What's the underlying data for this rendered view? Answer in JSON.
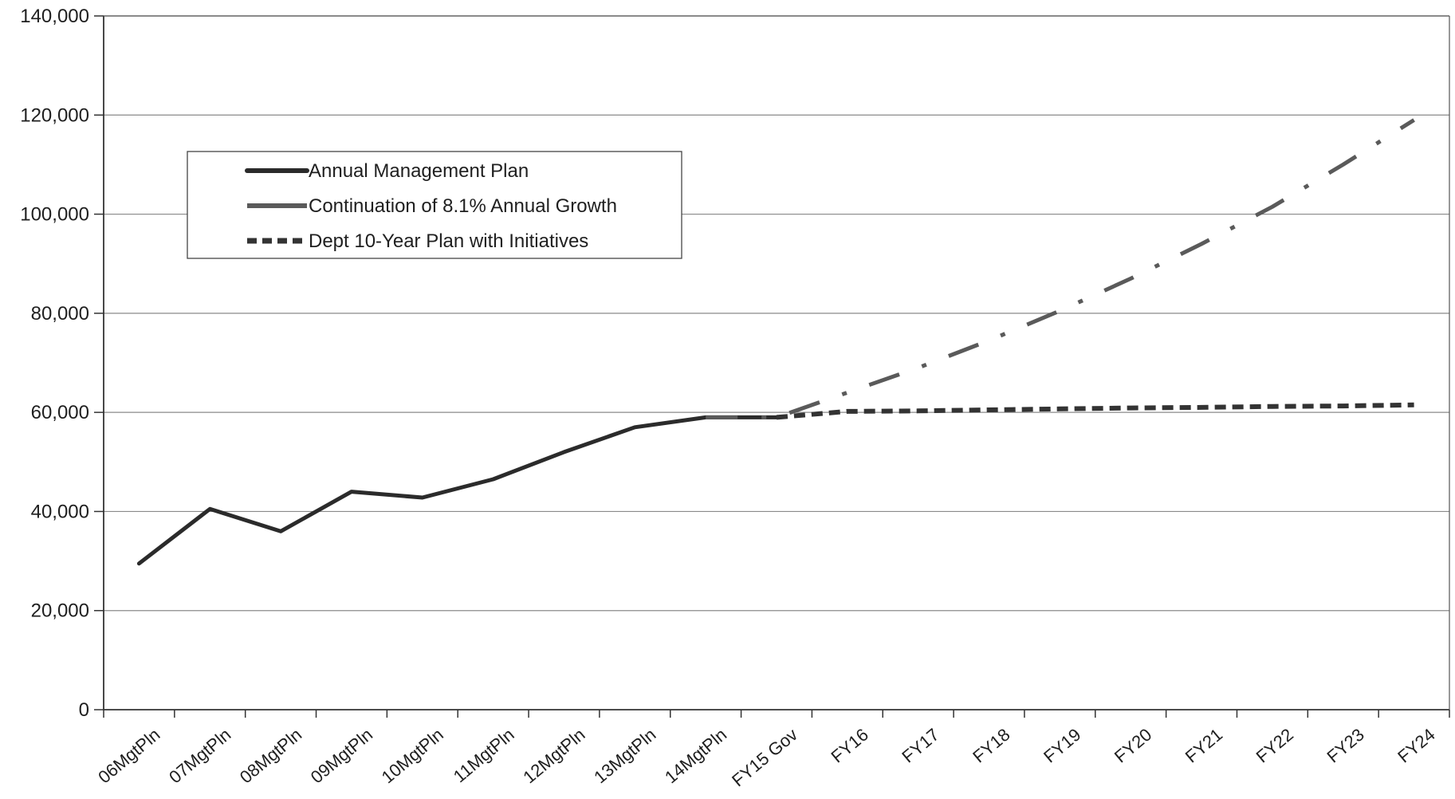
{
  "chart_data": {
    "type": "line",
    "title": "",
    "xlabel": "",
    "ylabel": "",
    "ylim": [
      0,
      140000
    ],
    "y_ticks": [
      "0",
      "20,000",
      "40,000",
      "60,000",
      "80,000",
      "100,000",
      "120,000",
      "140,000"
    ],
    "y_tick_values": [
      0,
      20000,
      40000,
      60000,
      80000,
      100000,
      120000,
      140000
    ],
    "grid": "horizontal",
    "legend_position": "upper-left",
    "categories": [
      "06MgtPln",
      "07MgtPln",
      "08MgtPln",
      "09MgtPln",
      "10MgtPln",
      "11MgtPln",
      "12MgtPln",
      "13MgtPln",
      "14MgtPln",
      "FY15 Gov",
      "FY16",
      "FY17",
      "FY18",
      "FY19",
      "FY20",
      "FY21",
      "FY22",
      "FY23",
      "FY24"
    ],
    "series": [
      {
        "name": "Annual Management Plan",
        "style": "solid",
        "color": "#2b2b2b",
        "values": [
          29500,
          40500,
          36000,
          44000,
          42800,
          46500,
          52000,
          57000,
          59000,
          59000,
          null,
          null,
          null,
          null,
          null,
          null,
          null,
          null,
          null
        ]
      },
      {
        "name": "Continuation of 8.1% Annual Growth",
        "style": "dash-dot",
        "color": "#5a5a5a",
        "values": [
          null,
          null,
          null,
          null,
          null,
          null,
          null,
          null,
          59000,
          59000,
          64000,
          69000,
          74500,
          80500,
          87000,
          94000,
          101500,
          110000,
          119000
        ]
      },
      {
        "name": "Dept 10-Year Plan with Initiatives",
        "style": "dashed",
        "color": "#333333",
        "values": [
          null,
          null,
          null,
          null,
          null,
          null,
          null,
          null,
          null,
          59000,
          60200,
          60300,
          60500,
          60700,
          60900,
          61000,
          61200,
          61300,
          61500
        ]
      }
    ]
  }
}
